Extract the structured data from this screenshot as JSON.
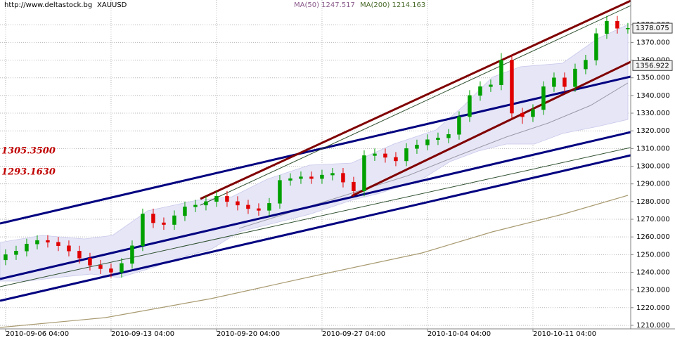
{
  "chart_data": {
    "type": "candlestick",
    "header": {
      "source": "http://www.deltastock.bg",
      "symbol": "XAUUSD",
      "ma50": "MA(50) 1247.517",
      "ma200": "MA(200) 1214.163"
    },
    "annotations": [
      "1305.3500",
      "1293.1630"
    ],
    "price_markers": [
      1378.075,
      1356.922
    ],
    "up_color": "#00a000",
    "down_color": "#e00000",
    "grid": true,
    "x": [
      0,
      1,
      2,
      3,
      4,
      5,
      6,
      7,
      8,
      9,
      10,
      11,
      12,
      13,
      14,
      15,
      16,
      17,
      18,
      19,
      20,
      21,
      22,
      23,
      24,
      25,
      26,
      27,
      28,
      29,
      30,
      31,
      32,
      33,
      34,
      35,
      36,
      37,
      38,
      39,
      40,
      41,
      42,
      43,
      44,
      45,
      46,
      47,
      48,
      49,
      50,
      51,
      52,
      53,
      54,
      55,
      56,
      57,
      58,
      59
    ],
    "open": [
      1247,
      1250,
      1252,
      1256,
      1258,
      1257,
      1255,
      1252,
      1248,
      1244,
      1242,
      1240,
      1245,
      1255,
      1273,
      1268,
      1267,
      1272,
      1277,
      1278,
      1280,
      1283,
      1280,
      1278,
      1276,
      1275,
      1279,
      1292,
      1293,
      1294,
      1293,
      1295,
      1296,
      1291,
      1286,
      1306,
      1307,
      1305,
      1303,
      1310,
      1312,
      1315,
      1316,
      1318,
      1328,
      1340,
      1345,
      1346,
      1360,
      1330,
      1328,
      1332,
      1345,
      1350,
      1345,
      1355,
      1360,
      1375,
      1382,
      1378
    ],
    "high": [
      1253,
      1255,
      1259,
      1261,
      1261,
      1260,
      1258,
      1255,
      1251,
      1247,
      1245,
      1248,
      1258,
      1276,
      1276,
      1271,
      1275,
      1280,
      1281,
      1283,
      1286,
      1286,
      1283,
      1281,
      1279,
      1282,
      1295,
      1296,
      1297,
      1297,
      1298,
      1299,
      1299,
      1294,
      1309,
      1310,
      1310,
      1308,
      1313,
      1315,
      1318,
      1319,
      1321,
      1331,
      1343,
      1348,
      1349,
      1364,
      1363,
      1333,
      1335,
      1348,
      1353,
      1353,
      1358,
      1363,
      1378,
      1385,
      1385,
      1381
    ],
    "low": [
      1244,
      1247,
      1249,
      1253,
      1254,
      1252,
      1249,
      1245,
      1241,
      1239,
      1237,
      1237,
      1242,
      1252,
      1265,
      1264,
      1264,
      1269,
      1274,
      1275,
      1277,
      1277,
      1275,
      1273,
      1272,
      1272,
      1276,
      1289,
      1290,
      1290,
      1290,
      1292,
      1288,
      1283,
      1283,
      1303,
      1302,
      1300,
      1300,
      1307,
      1309,
      1312,
      1313,
      1315,
      1325,
      1337,
      1342,
      1343,
      1327,
      1324,
      1325,
      1329,
      1342,
      1342,
      1342,
      1352,
      1357,
      1372,
      1375,
      1375
    ],
    "close": [
      1250,
      1252,
      1256,
      1258,
      1257,
      1255,
      1252,
      1248,
      1244,
      1242,
      1240,
      1245,
      1255,
      1273,
      1268,
      1267,
      1272,
      1277,
      1278,
      1280,
      1283,
      1280,
      1278,
      1276,
      1275,
      1279,
      1292,
      1293,
      1294,
      1293,
      1295,
      1296,
      1291,
      1286,
      1306,
      1307,
      1305,
      1303,
      1310,
      1312,
      1315,
      1316,
      1318,
      1328,
      1340,
      1345,
      1346,
      1360,
      1330,
      1328,
      1332,
      1345,
      1350,
      1345,
      1355,
      1360,
      1375,
      1382,
      1378,
      1378
    ],
    "xlim": [
      -0.53,
      59.27
    ],
    "xticks": [
      {
        "value": 0,
        "label": "2010-09-06 04:00"
      },
      {
        "value": 10,
        "label": "2010-09-13 04:00"
      },
      {
        "value": 20,
        "label": "2010-09-20 04:00"
      },
      {
        "value": 30,
        "label": "2010-09-27 04:00"
      },
      {
        "value": 40,
        "label": "2010-10-04 04:00"
      },
      {
        "value": 50,
        "label": "2010-10-11 04:00"
      }
    ],
    "ylim": [
      1208,
      1394
    ],
    "yticks": [
      {
        "value": 1210,
        "label": "1210.000"
      },
      {
        "value": 1220,
        "label": "1220.000"
      },
      {
        "value": 1230,
        "label": "1230.000"
      },
      {
        "value": 1240,
        "label": "1240.000"
      },
      {
        "value": 1250,
        "label": "1250.000"
      },
      {
        "value": 1260,
        "label": "1260.000"
      },
      {
        "value": 1270,
        "label": "1270.000"
      },
      {
        "value": 1280,
        "label": "1280.000"
      },
      {
        "value": 1290,
        "label": "1290.000"
      },
      {
        "value": 1300,
        "label": "1300.000"
      },
      {
        "value": 1310,
        "label": "1310.000"
      },
      {
        "value": 1320,
        "label": "1320.000"
      },
      {
        "value": 1330,
        "label": "1330.000"
      },
      {
        "value": 1340,
        "label": "1340.000"
      },
      {
        "value": 1350,
        "label": "1350.000"
      },
      {
        "value": 1360,
        "label": "1360.000"
      },
      {
        "value": 1370,
        "label": "1370.000"
      },
      {
        "value": 1380,
        "label": "1380.000"
      }
    ]
  }
}
